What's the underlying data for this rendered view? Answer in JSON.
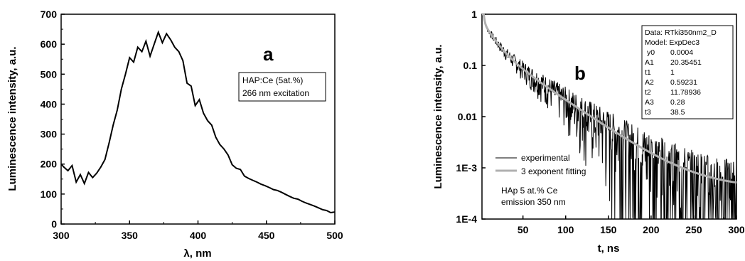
{
  "chart_data": [
    {
      "type": "line",
      "panel_label": "a",
      "xlabel": "λ, nm",
      "ylabel": "Luminescence intensity, a.u.",
      "xlim": [
        300,
        500
      ],
      "ylim": [
        0,
        700
      ],
      "xticks": [
        300,
        350,
        400,
        450,
        500
      ],
      "yticks": [
        0,
        100,
        200,
        300,
        400,
        500,
        600,
        700
      ],
      "xtick_labels": [
        "300",
        "350",
        "400",
        "450",
        "500"
      ],
      "ytick_labels": [
        "0",
        "100",
        "200",
        "300",
        "400",
        "500",
        "600",
        "700"
      ],
      "annotation": [
        "HAP:Ce (5at.%)",
        "266 nm excitation"
      ],
      "grid": false,
      "series": [
        {
          "x": [
            299,
            302,
            305,
            308,
            311,
            314,
            317,
            320,
            323,
            326,
            329,
            332,
            335,
            338,
            341,
            344,
            347,
            350,
            353,
            356,
            359,
            362,
            365,
            368,
            371,
            374,
            377,
            380,
            383,
            386,
            389,
            392,
            395,
            398,
            401,
            404,
            407,
            410,
            413,
            416,
            419,
            422,
            425,
            428,
            431,
            434,
            437,
            440,
            443,
            446,
            449,
            452,
            455,
            458,
            461,
            464,
            467,
            470,
            473,
            476,
            479,
            482,
            485,
            488,
            491,
            494,
            497,
            500
          ],
          "y": [
            200,
            190,
            178,
            195,
            140,
            165,
            135,
            172,
            155,
            170,
            190,
            215,
            270,
            330,
            380,
            450,
            500,
            555,
            540,
            590,
            575,
            610,
            560,
            600,
            640,
            605,
            635,
            615,
            590,
            575,
            545,
            470,
            460,
            395,
            415,
            370,
            345,
            330,
            290,
            265,
            250,
            230,
            198,
            186,
            182,
            160,
            152,
            146,
            140,
            133,
            128,
            122,
            115,
            112,
            106,
            99,
            92,
            86,
            83,
            76,
            70,
            65,
            60,
            54,
            48,
            45,
            38,
            40
          ]
        }
      ]
    },
    {
      "type": "line",
      "panel_label": "b",
      "xlabel": "t, ns",
      "ylabel": "Luminescence intensity, a.u.",
      "xlim": [
        2,
        300
      ],
      "ylim": [
        0.0001,
        1
      ],
      "yscale": "log",
      "xticks": [
        50,
        100,
        150,
        200,
        250,
        300
      ],
      "xtick_labels": [
        "50",
        "100",
        "150",
        "200",
        "250",
        "300"
      ],
      "yticks": [
        0.0001,
        0.001,
        0.01,
        0.1,
        1
      ],
      "ytick_labels": [
        "1E-4",
        "1E-3",
        "0.01",
        "0.1",
        "1"
      ],
      "grid": false,
      "legend": [
        "experimental",
        "3 exponent fitting"
      ],
      "legend_location": "lower-left",
      "annotation": [
        "HAp 5 at.%  Ce",
        "emission 350 nm"
      ],
      "fit_params": {
        "data_label": "Data: RTki350nm2_D",
        "model_label": "Model: ExpDec3",
        "rows": [
          [
            "y0",
            "0.0004"
          ],
          [
            "A1",
            "20.35451"
          ],
          [
            "t1",
            "1"
          ],
          [
            "A2",
            "0.59231"
          ],
          [
            "t2",
            "11.78936"
          ],
          [
            "A3",
            "0.28"
          ],
          [
            "t3",
            "38.5"
          ]
        ]
      },
      "model": {
        "y0": 0.0004,
        "A1": 20.35451,
        "t1": 1,
        "A2": 0.59231,
        "t2": 11.78936,
        "A3": 0.28,
        "t3": 38.5
      },
      "series": [
        {
          "name": "experimental",
          "color": "#000000"
        },
        {
          "name": "3 exponent fitting",
          "color": "#b0b0b0"
        }
      ]
    }
  ]
}
